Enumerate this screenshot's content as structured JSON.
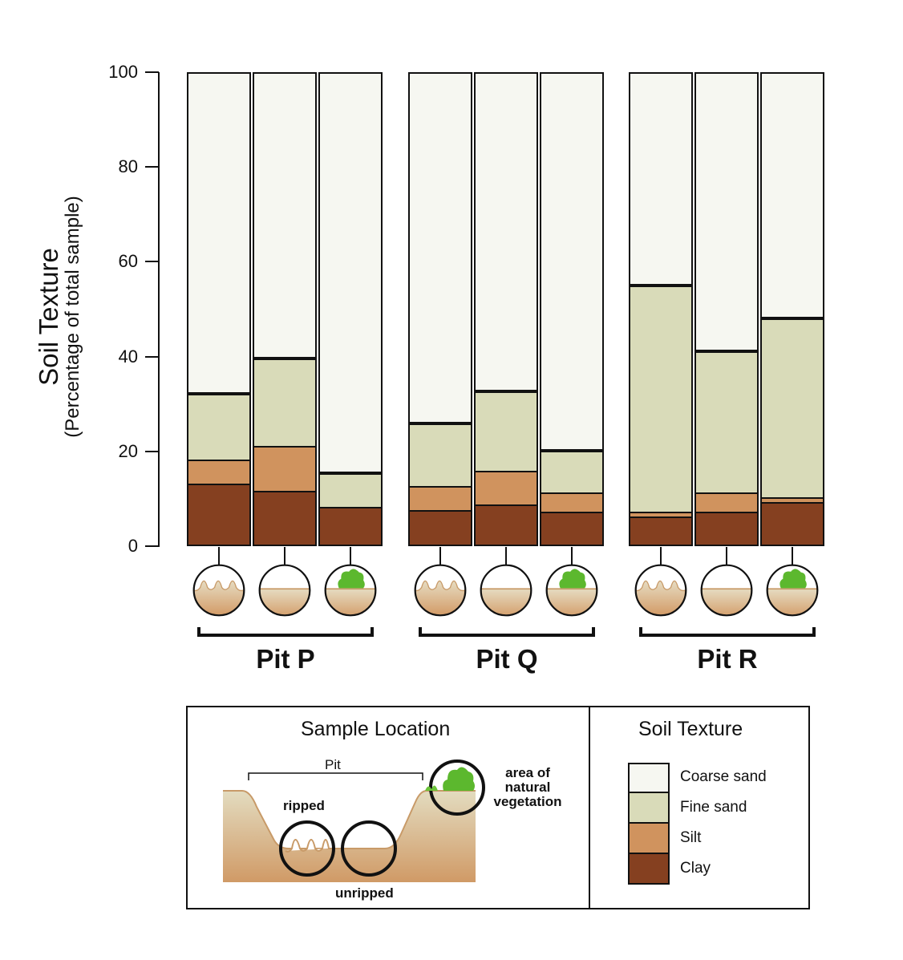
{
  "chart_data": {
    "type": "bar",
    "stacked": true,
    "title": "",
    "ylabel": "Soil Texture",
    "ylabel_sub": "(Percentage of total sample)",
    "ylim": [
      0,
      100
    ],
    "yticks": [
      0,
      20,
      40,
      60,
      80,
      100
    ],
    "groups": [
      "Pit P",
      "Pit Q",
      "Pit R"
    ],
    "categories": [
      "ripped",
      "unripped",
      "area of natural vegetation"
    ],
    "series": [
      {
        "name": "Clay",
        "color": "#854020",
        "values": [
          [
            13,
            11.5,
            8
          ],
          [
            7.3,
            8.5,
            7
          ],
          [
            6,
            7,
            9
          ]
        ]
      },
      {
        "name": "Silt",
        "color": "#d0935e",
        "values": [
          [
            5,
            9.5,
            0
          ],
          [
            5.1,
            7.2,
            4
          ],
          [
            1,
            4,
            1
          ]
        ]
      },
      {
        "name": "Fine sand",
        "color": "#d9dbb9",
        "values": [
          [
            14,
            18.6,
            7.2
          ],
          [
            13.3,
            16.8,
            9
          ],
          [
            48,
            30,
            38
          ]
        ]
      },
      {
        "name": "Coarse sand",
        "color": "#f6f7f1",
        "values": [
          [
            68,
            60.4,
            84.8
          ],
          [
            74.3,
            67.5,
            80
          ],
          [
            45,
            59,
            52
          ]
        ]
      }
    ],
    "cumulative_tops": {
      "Pit P": [
        [
          13,
          18,
          32,
          100
        ],
        [
          11.5,
          21,
          39.6,
          100
        ],
        [
          8,
          8,
          15.2,
          100
        ]
      ],
      "Pit Q": [
        [
          7.3,
          12.4,
          25.7,
          100
        ],
        [
          8.5,
          15.7,
          32.5,
          100
        ],
        [
          7,
          11,
          20,
          100
        ]
      ],
      "Pit R": [
        [
          6,
          7,
          55,
          100
        ],
        [
          7,
          11,
          41,
          100
        ],
        [
          9,
          10,
          48,
          100
        ]
      ]
    },
    "legend_position": "bottom"
  },
  "axis": {
    "title": "Soil Texture",
    "subtitle": "(Percentage of total sample)",
    "ticks": [
      "0",
      "20",
      "40",
      "60",
      "80",
      "100"
    ]
  },
  "pits": [
    {
      "label": "Pit P"
    },
    {
      "label": "Pit Q"
    },
    {
      "label": "Pit R"
    }
  ],
  "legend": {
    "location_title": "Sample Location",
    "pit_label": "Pit",
    "ripped_label": "ripped",
    "unripped_label": "unripped",
    "vegetation_label_1": "area of",
    "vegetation_label_2": "natural",
    "vegetation_label_3": "vegetation",
    "texture_title": "Soil Texture",
    "items": [
      {
        "label": "Coarse sand",
        "color": "#f6f7f1"
      },
      {
        "label": "Fine sand",
        "color": "#d9dbb9"
      },
      {
        "label": "Silt",
        "color": "#d0935e"
      },
      {
        "label": "Clay",
        "color": "#854020"
      }
    ]
  }
}
